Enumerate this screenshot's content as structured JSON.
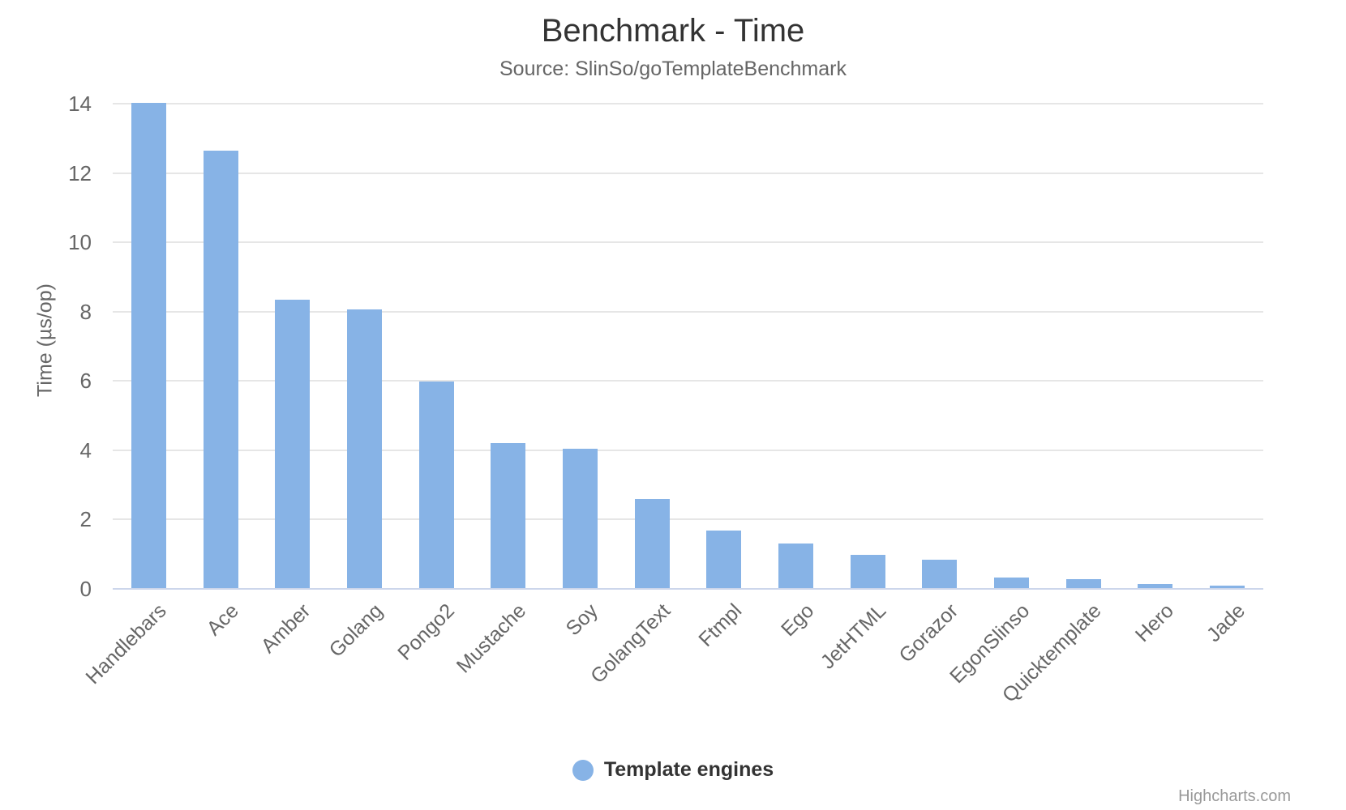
{
  "title": "Benchmark - Time",
  "subtitle": "Source: SlinSo/goTemplateBenchmark",
  "legend": {
    "label": "Template engines"
  },
  "credits": {
    "label": "Highcharts.com"
  },
  "colors": {
    "bar": "#87b3e6",
    "grid": "#e6e6e6",
    "axis_line": "#ccd6eb",
    "text_muted": "#666666",
    "text_dark": "#333333",
    "credits_text": "#999999"
  },
  "chart_data": {
    "type": "bar",
    "title": "Benchmark - Time",
    "subtitle": "Source: SlinSo/goTemplateBenchmark",
    "series_name": "Template engines",
    "categories": [
      "Handlebars",
      "Ace",
      "Amber",
      "Golang",
      "Pongo2",
      "Mustache",
      "Soy",
      "GolangText",
      "Ftmpl",
      "Ego",
      "JetHTML",
      "Gorazor",
      "EgonSlinso",
      "Quicktemplate",
      "Hero",
      "Jade"
    ],
    "values": [
      13.99,
      12.63,
      8.33,
      8.05,
      5.97,
      4.19,
      4.02,
      2.56,
      1.65,
      1.28,
      0.95,
      0.81,
      0.3,
      0.26,
      0.11,
      0.07
    ],
    "xlabel": "",
    "ylabel": "Time (µs/op)",
    "ylim": [
      0,
      14
    ],
    "yticks": [
      0,
      2,
      4,
      6,
      8,
      10,
      12,
      14
    ],
    "grid": "horizontal",
    "legend_position": "bottom",
    "bar_color": "#87b3e6"
  }
}
